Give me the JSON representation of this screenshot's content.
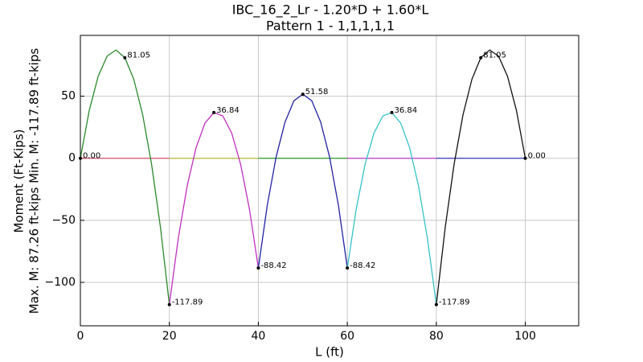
{
  "chart_data": {
    "type": "line",
    "title": "IBC_16_2_Lr -  1.20*D + 1.60*L",
    "subtitle": "Pattern 1 - 1,1,1,1,1",
    "x_label": "L (ft)",
    "y_label": "Moment (Ft-Kips)",
    "y_label_2": "Max. M: 87.26 ft-kips  Min. M: -117.89 ft-kips",
    "xlim": [
      0,
      112
    ],
    "ylim": [
      -135,
      99
    ],
    "xticks": [
      0,
      20,
      40,
      60,
      80,
      100
    ],
    "yticks": [
      {
        "value": -100,
        "label": "−100"
      },
      {
        "value": -50,
        "label": "−50"
      },
      0,
      50
    ],
    "grid": true,
    "series": [
      {
        "color": "#d9536f",
        "x": [
          0,
          20
        ],
        "values": [
          0,
          0
        ]
      },
      {
        "color": "#bcbc3c",
        "x": [
          20,
          40
        ],
        "values": [
          0,
          0
        ]
      },
      {
        "color": "#2e9a2e",
        "x": [
          40,
          60
        ],
        "values": [
          0,
          0
        ]
      },
      {
        "color": "#c23bc2",
        "x": [
          60,
          80
        ],
        "values": [
          0,
          0
        ]
      },
      {
        "color": "#3a3ab8",
        "x": [
          80,
          100
        ],
        "values": [
          0,
          0
        ]
      },
      {
        "color": "#2a8a2a",
        "x": [
          0,
          2,
          4,
          6,
          8,
          10,
          12,
          14,
          16,
          18,
          20
        ],
        "values": [
          0,
          38.61,
          66.02,
          82.23,
          87.24,
          81.05,
          63.66,
          35.07,
          -4.72,
          -55.71,
          -117.89
        ]
      },
      {
        "color": "#c030c0",
        "x": [
          20,
          22,
          24,
          26,
          28,
          30,
          32,
          34,
          36,
          38,
          40
        ],
        "values": [
          -117.89,
          -64.54,
          -22.4,
          8.55,
          28.3,
          36.84,
          34.19,
          20.34,
          -4.71,
          -40.97,
          -88.42
        ]
      },
      {
        "color": "#2323a3",
        "x": [
          40,
          42,
          44,
          46,
          48,
          50,
          52,
          54,
          56,
          58,
          60
        ],
        "values": [
          -88.42,
          -38.02,
          1.18,
          29.18,
          46.38,
          51.58,
          46.38,
          29.18,
          1.18,
          -38.02,
          -88.42
        ]
      },
      {
        "color": "#35c2c9",
        "x": [
          60,
          62,
          64,
          66,
          68,
          70,
          72,
          74,
          76,
          78,
          80
        ],
        "values": [
          -88.42,
          -40.97,
          -4.71,
          20.34,
          34.19,
          36.84,
          28.3,
          8.55,
          -22.4,
          -64.54,
          -117.89
        ]
      },
      {
        "color": "#111111",
        "x": [
          80,
          82,
          84,
          86,
          88,
          90,
          92,
          94,
          96,
          98,
          100
        ],
        "values": [
          -117.89,
          -55.71,
          -4.72,
          35.07,
          63.66,
          81.05,
          87.24,
          82.23,
          66.02,
          38.61,
          0
        ]
      }
    ],
    "annotations": [
      {
        "x": 0,
        "y": 0,
        "label": "0.00"
      },
      {
        "x": 10,
        "y": 81.05,
        "label": "81.05"
      },
      {
        "x": 20,
        "y": -117.89,
        "label": "-117.89"
      },
      {
        "x": 30,
        "y": 36.84,
        "label": "36.84"
      },
      {
        "x": 40,
        "y": -88.42,
        "label": "-88.42"
      },
      {
        "x": 50,
        "y": 51.58,
        "label": "51.58"
      },
      {
        "x": 60,
        "y": -88.42,
        "label": "-88.42"
      },
      {
        "x": 70,
        "y": 36.84,
        "label": "36.84"
      },
      {
        "x": 80,
        "y": -117.89,
        "label": "-117.89"
      },
      {
        "x": 90,
        "y": 81.05,
        "label": "81.05"
      },
      {
        "x": 100,
        "y": 0,
        "label": "0.00"
      }
    ]
  }
}
